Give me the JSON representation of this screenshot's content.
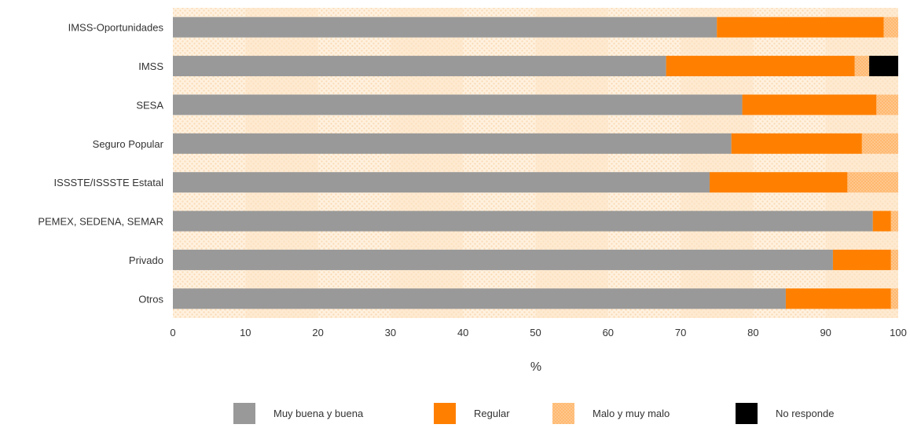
{
  "chart_data": {
    "type": "bar",
    "orientation": "horizontal",
    "stacked": true,
    "categories": [
      "IMSS-Oportunidades",
      "IMSS",
      "SESA",
      "Seguro Popular",
      "ISSSTE/ISSSTE Estatal",
      "PEMEX, SEDENA, SEMAR",
      "Privado",
      "Otros"
    ],
    "series": [
      {
        "name": "Muy buena y buena",
        "color": "#999999",
        "values": [
          75,
          68,
          78.5,
          77,
          74,
          96.5,
          91,
          84.5
        ]
      },
      {
        "name": "Regular",
        "color": "#ff8000",
        "values": [
          23,
          26,
          18.5,
          18,
          19,
          2.5,
          8,
          14.5
        ]
      },
      {
        "name": "Malo y muy malo",
        "color": "#ffc080",
        "values": [
          2,
          2,
          3,
          5,
          7,
          1,
          1,
          1
        ]
      },
      {
        "name": "No responde",
        "color": "#000000",
        "values": [
          0,
          4,
          0,
          0,
          0,
          0,
          0,
          0
        ]
      }
    ],
    "x_ticks": [
      "0",
      "10",
      "20",
      "30",
      "40",
      "50",
      "60",
      "70",
      "80",
      "90",
      "100"
    ],
    "xlim": [
      0,
      100
    ],
    "xlabel": "%",
    "ylabel": "",
    "title": "",
    "grid": false,
    "legend_position": "bottom",
    "background_pattern_colors": [
      "#fde4c4",
      "#fff2e0"
    ]
  }
}
